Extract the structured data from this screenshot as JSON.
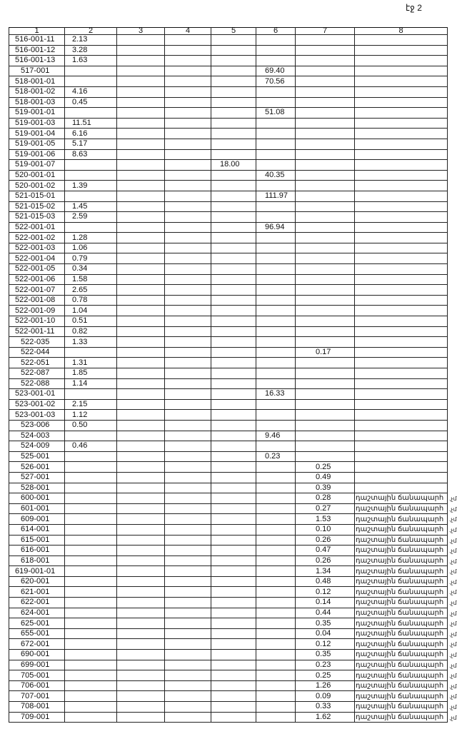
{
  "page_label": "էջ 2",
  "columns": [
    "1",
    "2",
    "3",
    "4",
    "5",
    "6",
    "7",
    "8"
  ],
  "road_text": "դաշտային ճանապարհ",
  "road_suffix": ".չմ",
  "rows": [
    [
      "516-001-11",
      "2.13",
      "",
      "",
      "",
      "",
      "",
      ""
    ],
    [
      "516-001-12",
      "3.28",
      "",
      "",
      "",
      "",
      "",
      ""
    ],
    [
      "516-001-13",
      "1.63",
      "",
      "",
      "",
      "",
      "",
      ""
    ],
    [
      "517-001",
      "",
      "",
      "",
      "",
      "69.40",
      "",
      ""
    ],
    [
      "518-001-01",
      "",
      "",
      "",
      "",
      "70.56",
      "",
      ""
    ],
    [
      "518-001-02",
      "4.16",
      "",
      "",
      "",
      "",
      "",
      ""
    ],
    [
      "518-001-03",
      "0.45",
      "",
      "",
      "",
      "",
      "",
      ""
    ],
    [
      "519-001-01",
      "",
      "",
      "",
      "",
      "51.08",
      "",
      ""
    ],
    [
      "519-001-03",
      "11.51",
      "",
      "",
      "",
      "",
      "",
      ""
    ],
    [
      "519-001-04",
      "6.16",
      "",
      "",
      "",
      "",
      "",
      ""
    ],
    [
      "519-001-05",
      "5.17",
      "",
      "",
      "",
      "",
      "",
      ""
    ],
    [
      "519-001-06",
      "8.63",
      "",
      "",
      "",
      "",
      "",
      ""
    ],
    [
      "519-001-07",
      "",
      "",
      "",
      "18.00",
      "",
      "",
      ""
    ],
    [
      "520-001-01",
      "",
      "",
      "",
      "",
      "40.35",
      "",
      ""
    ],
    [
      "520-001-02",
      "1.39",
      "",
      "",
      "",
      "",
      "",
      ""
    ],
    [
      "521-015-01",
      "",
      "",
      "",
      "",
      "111.97",
      "",
      ""
    ],
    [
      "521-015-02",
      "1.45",
      "",
      "",
      "",
      "",
      "",
      ""
    ],
    [
      "521-015-03",
      "2.59",
      "",
      "",
      "",
      "",
      "",
      ""
    ],
    [
      "522-001-01",
      "",
      "",
      "",
      "",
      "96.94",
      "",
      ""
    ],
    [
      "522-001-02",
      "1.28",
      "",
      "",
      "",
      "",
      "",
      ""
    ],
    [
      "522-001-03",
      "1.06",
      "",
      "",
      "",
      "",
      "",
      ""
    ],
    [
      "522-001-04",
      "0.79",
      "",
      "",
      "",
      "",
      "",
      ""
    ],
    [
      "522-001-05",
      "0.34",
      "",
      "",
      "",
      "",
      "",
      ""
    ],
    [
      "522-001-06",
      "1.58",
      "",
      "",
      "",
      "",
      "",
      ""
    ],
    [
      "522-001-07",
      "2.65",
      "",
      "",
      "",
      "",
      "",
      ""
    ],
    [
      "522-001-08",
      "0.78",
      "",
      "",
      "",
      "",
      "",
      ""
    ],
    [
      "522-001-09",
      "1.04",
      "",
      "",
      "",
      "",
      "",
      ""
    ],
    [
      "522-001-10",
      "0.51",
      "",
      "",
      "",
      "",
      "",
      ""
    ],
    [
      "522-001-11",
      "0.82",
      "",
      "",
      "",
      "",
      "",
      ""
    ],
    [
      "522-035",
      "1.33",
      "",
      "",
      "",
      "",
      "",
      ""
    ],
    [
      "522-044",
      "",
      "",
      "",
      "",
      "",
      "0.17",
      ""
    ],
    [
      "522-051",
      "1.31",
      "",
      "",
      "",
      "",
      "",
      ""
    ],
    [
      "522-087",
      "1.85",
      "",
      "",
      "",
      "",
      "",
      ""
    ],
    [
      "522-088",
      "1.14",
      "",
      "",
      "",
      "",
      "",
      ""
    ],
    [
      "523-001-01",
      "",
      "",
      "",
      "",
      "16.33",
      "",
      ""
    ],
    [
      "523-001-02",
      "2.15",
      "",
      "",
      "",
      "",
      "",
      ""
    ],
    [
      "523-001-03",
      "1.12",
      "",
      "",
      "",
      "",
      "",
      ""
    ],
    [
      "523-006",
      "0.50",
      "",
      "",
      "",
      "",
      "",
      ""
    ],
    [
      "524-003",
      "",
      "",
      "",
      "",
      "9.46",
      "",
      ""
    ],
    [
      "524-009",
      "0.46",
      "",
      "",
      "",
      "",
      "",
      ""
    ],
    [
      "525-001",
      "",
      "",
      "",
      "",
      "0.23",
      "",
      ""
    ],
    [
      "526-001",
      "",
      "",
      "",
      "",
      "",
      "0.25",
      ""
    ],
    [
      "527-001",
      "",
      "",
      "",
      "",
      "",
      "0.49",
      ""
    ],
    [
      "528-001",
      "",
      "",
      "",
      "",
      "",
      "0.39",
      ""
    ],
    [
      "600-001",
      "",
      "",
      "",
      "",
      "",
      "0.28",
      "road"
    ],
    [
      "601-001",
      "",
      "",
      "",
      "",
      "",
      "0.27",
      "road"
    ],
    [
      "609-001",
      "",
      "",
      "",
      "",
      "",
      "1.53",
      "road"
    ],
    [
      "614-001",
      "",
      "",
      "",
      "",
      "",
      "0.10",
      "road"
    ],
    [
      "615-001",
      "",
      "",
      "",
      "",
      "",
      "0.26",
      "road"
    ],
    [
      "616-001",
      "",
      "",
      "",
      "",
      "",
      "0.47",
      "road"
    ],
    [
      "618-001",
      "",
      "",
      "",
      "",
      "",
      "0.26",
      "road"
    ],
    [
      "619-001-01",
      "",
      "",
      "",
      "",
      "",
      "1.34",
      "road"
    ],
    [
      "620-001",
      "",
      "",
      "",
      "",
      "",
      "0.48",
      "road"
    ],
    [
      "621-001",
      "",
      "",
      "",
      "",
      "",
      "0.12",
      "road"
    ],
    [
      "622-001",
      "",
      "",
      "",
      "",
      "",
      "0.14",
      "road"
    ],
    [
      "624-001",
      "",
      "",
      "",
      "",
      "",
      "0.44",
      "road"
    ],
    [
      "625-001",
      "",
      "",
      "",
      "",
      "",
      "0.35",
      "road"
    ],
    [
      "655-001",
      "",
      "",
      "",
      "",
      "",
      "0.04",
      "road"
    ],
    [
      "672-001",
      "",
      "",
      "",
      "",
      "",
      "0.12",
      "road"
    ],
    [
      "690-001",
      "",
      "",
      "",
      "",
      "",
      "0.35",
      "road"
    ],
    [
      "699-001",
      "",
      "",
      "",
      "",
      "",
      "0.23",
      "road"
    ],
    [
      "705-001",
      "",
      "",
      "",
      "",
      "",
      "0.25",
      "road"
    ],
    [
      "706-001",
      "",
      "",
      "",
      "",
      "",
      "1.26",
      "road"
    ],
    [
      "707-001",
      "",
      "",
      "",
      "",
      "",
      "0.09",
      "road"
    ],
    [
      "708-001",
      "",
      "",
      "",
      "",
      "",
      "0.33",
      "road"
    ],
    [
      "709-001",
      "",
      "",
      "",
      "",
      "",
      "1.62",
      "road"
    ]
  ]
}
